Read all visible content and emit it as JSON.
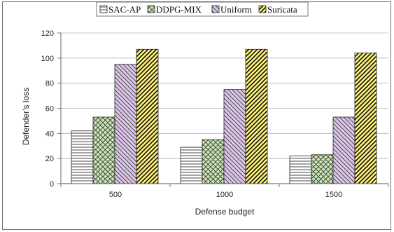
{
  "chart_data": {
    "type": "bar",
    "title": "",
    "xlabel": "Defense budget",
    "ylabel": "Defender's loss",
    "categories": [
      "500",
      "1000",
      "1500"
    ],
    "series": [
      {
        "name": "SAC-AP",
        "values": [
          42,
          29,
          22
        ],
        "color": "#ffffff",
        "pattern": "horizontal"
      },
      {
        "name": "DDPG-MIX",
        "values": [
          53,
          35,
          23
        ],
        "color": "#c8e6b4",
        "pattern": "crosshatch"
      },
      {
        "name": "Uniform",
        "values": [
          95,
          75,
          53
        ],
        "color": "#dcc6e8",
        "pattern": "diagonal-down"
      },
      {
        "name": "Suricata",
        "values": [
          107,
          107,
          104
        ],
        "color": "#fff27a",
        "pattern": "diagonal-up"
      }
    ],
    "ylim": [
      0,
      120
    ],
    "yticks": [
      0,
      20,
      40,
      60,
      80,
      100,
      120
    ],
    "grid": true,
    "legend_position": "top"
  }
}
